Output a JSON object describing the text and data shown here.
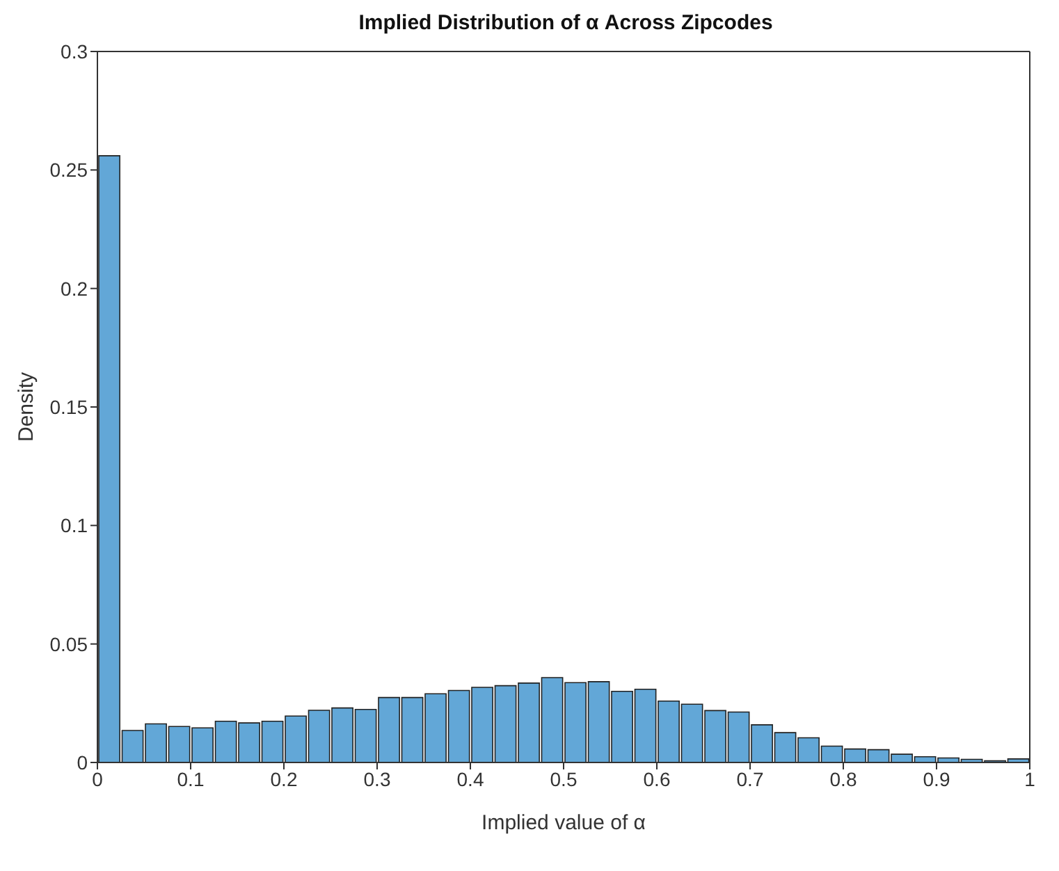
{
  "chart_data": {
    "type": "histogram",
    "title": "Implied Distribution of α Across Zipcodes",
    "xlabel": "Implied value of α",
    "ylabel": "Density",
    "color": "#62a7d7",
    "bins": [
      0,
      0.025,
      0.05,
      0.075,
      0.1,
      0.125,
      0.15,
      0.175,
      0.2,
      0.225,
      0.25,
      0.275,
      0.3,
      0.325,
      0.35,
      0.375,
      0.4,
      0.425,
      0.45,
      0.475,
      0.5,
      0.525,
      0.55,
      0.575,
      0.6,
      0.625,
      0.65,
      0.675,
      0.7,
      0.725,
      0.75,
      0.775,
      0.8,
      0.825,
      0.85,
      0.875,
      0.9,
      0.925,
      0.95,
      0.975,
      1
    ],
    "values": [
      0.256,
      0.0135,
      0.0163,
      0.0152,
      0.0146,
      0.0174,
      0.0167,
      0.0174,
      0.0196,
      0.022,
      0.023,
      0.0224,
      0.0274,
      0.0274,
      0.029,
      0.0304,
      0.0317,
      0.0324,
      0.0335,
      0.0358,
      0.0337,
      0.0341,
      0.03,
      0.0309,
      0.0259,
      0.0246,
      0.0219,
      0.0213,
      0.0159,
      0.0126,
      0.0104,
      0.0069,
      0.0057,
      0.0054,
      0.0035,
      0.0024,
      0.0019,
      0.0013,
      0.0007,
      0.0015
    ],
    "xlim": [
      0,
      1
    ],
    "xticks": [
      0,
      0.1,
      0.2,
      0.3,
      0.4,
      0.5,
      0.6,
      0.7,
      0.8,
      0.9,
      1
    ],
    "ylim": [
      0,
      0.3
    ],
    "yticks": [
      0,
      0.05,
      0.1,
      0.15,
      0.2,
      0.25,
      0.3
    ],
    "grid": false
  }
}
